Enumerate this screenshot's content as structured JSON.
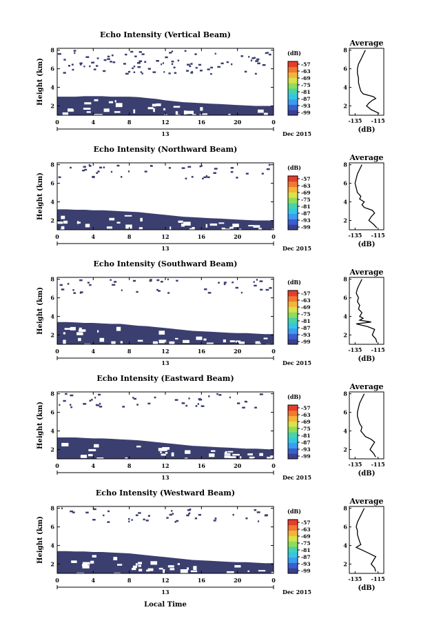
{
  "figure": {
    "xlabel": "Local Time",
    "date_label": "Dec 2015",
    "day_label": "13",
    "ylabel": "Height (km)",
    "colorbar_unit": "(dB)",
    "colorbar_ticks": [
      "-57",
      "-63",
      "-69",
      "-75",
      "-81",
      "-87",
      "-93",
      "-99"
    ],
    "colorbar_colors": [
      "#3b3f8f",
      "#3a5fcd",
      "#3b9cf0",
      "#36c6e4",
      "#48d3a8",
      "#8fdc5c",
      "#d9e24a",
      "#f4b43c",
      "#f07a32",
      "#e53e2a"
    ],
    "x_ticks": [
      "0",
      "4",
      "8",
      "12",
      "16",
      "20",
      "0"
    ],
    "y_ticks": [
      "2",
      "4",
      "6",
      "8"
    ],
    "avg_title": "Average",
    "avg_xlabel": "(dB)",
    "avg_xticks": [
      "-135",
      "-115"
    ],
    "avg_yticks": [
      "2",
      "4",
      "6",
      "8"
    ],
    "fill_color": "#3b3f6f"
  },
  "chart_data": [
    {
      "type": "heatmap",
      "title": "Echo Intensity (Vertical Beam)",
      "x_unit": "hours local time",
      "xlim": [
        0,
        24
      ],
      "ylim": [
        1,
        8.2
      ],
      "layer_top_km": [
        3.0,
        3.0,
        3.0,
        3.05,
        3.05,
        3.05,
        3.0,
        3.0,
        3.0,
        2.95,
        2.85,
        2.75,
        2.6,
        2.5,
        2.4,
        2.35,
        2.3,
        2.25,
        2.2,
        2.15,
        2.1,
        2.05,
        2.0,
        2.0,
        2.0
      ],
      "avg_profile": {
        "height_km": [
          1.2,
          1.6,
          2.0,
          2.3,
          2.6,
          2.8,
          3.0,
          3.3,
          3.6,
          4.0,
          4.5,
          5.0,
          5.5,
          6.0,
          6.5,
          7.0,
          7.5,
          8.0
        ],
        "db": [
          -114,
          -121,
          -125,
          -123,
          -120,
          -117,
          -119,
          -128,
          -130,
          -131,
          -132,
          -132,
          -133,
          -133,
          -132,
          -130,
          -128,
          -126
        ]
      }
    },
    {
      "type": "heatmap",
      "title": "Echo Intensity (Northward Beam)",
      "x_unit": "hours local time",
      "xlim": [
        0,
        24
      ],
      "ylim": [
        1,
        8.2
      ],
      "layer_top_km": [
        3.2,
        3.2,
        3.15,
        3.15,
        3.1,
        3.1,
        3.05,
        3.0,
        2.95,
        2.9,
        2.8,
        2.7,
        2.6,
        2.5,
        2.4,
        2.35,
        2.3,
        2.25,
        2.2,
        2.15,
        2.1,
        2.05,
        2.0,
        2.0,
        2.0
      ],
      "avg_profile": {
        "height_km": [
          1.2,
          1.6,
          2.0,
          2.4,
          2.8,
          3.1,
          3.4,
          3.7,
          4.0,
          4.3,
          4.6,
          5.0,
          5.5,
          6.0,
          6.5,
          7.0,
          7.5,
          8.0
        ],
        "db": [
          -116,
          -119,
          -123,
          -121,
          -118,
          -120,
          -127,
          -129,
          -127,
          -131,
          -130,
          -133,
          -134,
          -135,
          -134,
          -133,
          -131,
          -129
        ]
      }
    },
    {
      "type": "heatmap",
      "title": "Echo Intensity (Southward Beam)",
      "x_unit": "hours local time",
      "xlim": [
        0,
        24
      ],
      "ylim": [
        1,
        8.2
      ],
      "layer_top_km": [
        3.4,
        3.4,
        3.35,
        3.3,
        3.3,
        3.25,
        3.2,
        3.2,
        3.1,
        3.0,
        2.95,
        2.85,
        2.75,
        2.65,
        2.55,
        2.45,
        2.4,
        2.35,
        2.3,
        2.25,
        2.2,
        2.2,
        2.15,
        2.1,
        2.1
      ],
      "avg_profile": {
        "height_km": [
          1.2,
          1.6,
          2.0,
          2.3,
          2.6,
          2.9,
          3.2,
          3.4,
          3.6,
          3.8,
          4.0,
          4.4,
          4.8,
          5.2,
          5.6,
          6.0,
          6.5,
          7.0,
          7.5,
          8.0
        ],
        "db": [
          -116,
          -117,
          -120,
          -119,
          -118,
          -124,
          -134,
          -121,
          -131,
          -128,
          -131,
          -129,
          -132,
          -131,
          -133,
          -132,
          -134,
          -133,
          -131,
          -129
        ]
      }
    },
    {
      "type": "heatmap",
      "title": "Echo Intensity (Eastward Beam)",
      "x_unit": "hours local time",
      "xlim": [
        0,
        24
      ],
      "ylim": [
        1,
        8.2
      ],
      "layer_top_km": [
        3.3,
        3.3,
        3.3,
        3.25,
        3.2,
        3.2,
        3.15,
        3.1,
        3.05,
        3.0,
        2.9,
        2.8,
        2.7,
        2.6,
        2.5,
        2.4,
        2.35,
        2.3,
        2.25,
        2.2,
        2.15,
        2.1,
        2.1,
        2.05,
        2.0
      ],
      "avg_profile": {
        "height_km": [
          1.2,
          1.6,
          2.0,
          2.4,
          2.8,
          3.1,
          3.4,
          3.7,
          4.0,
          4.4,
          4.8,
          5.2,
          5.6,
          6.0,
          6.5,
          7.0,
          7.5,
          8.0
        ],
        "db": [
          -117,
          -119,
          -122,
          -120,
          -118,
          -121,
          -126,
          -128,
          -130,
          -129,
          -131,
          -132,
          -133,
          -133,
          -132,
          -131,
          -129,
          -127
        ]
      }
    },
    {
      "type": "heatmap",
      "title": "Echo Intensity (Westward Beam)",
      "x_unit": "hours local time",
      "xlim": [
        0,
        24
      ],
      "ylim": [
        1,
        8.2
      ],
      "layer_top_km": [
        3.4,
        3.4,
        3.35,
        3.35,
        3.3,
        3.3,
        3.25,
        3.2,
        3.15,
        3.05,
        2.95,
        2.85,
        2.75,
        2.65,
        2.55,
        2.45,
        2.4,
        2.35,
        2.3,
        2.25,
        2.2,
        2.2,
        2.15,
        2.1,
        2.1
      ],
      "avg_profile": {
        "height_km": [
          1.2,
          1.6,
          2.0,
          2.4,
          2.8,
          3.1,
          3.4,
          3.8,
          4.1,
          4.4,
          4.8,
          5.2,
          5.6,
          6.0,
          6.5,
          7.0,
          7.5,
          8.0
        ],
        "db": [
          -117,
          -118,
          -121,
          -119,
          -117,
          -122,
          -127,
          -134,
          -130,
          -131,
          -132,
          -133,
          -133,
          -134,
          -133,
          -131,
          -129,
          -127
        ]
      }
    }
  ]
}
